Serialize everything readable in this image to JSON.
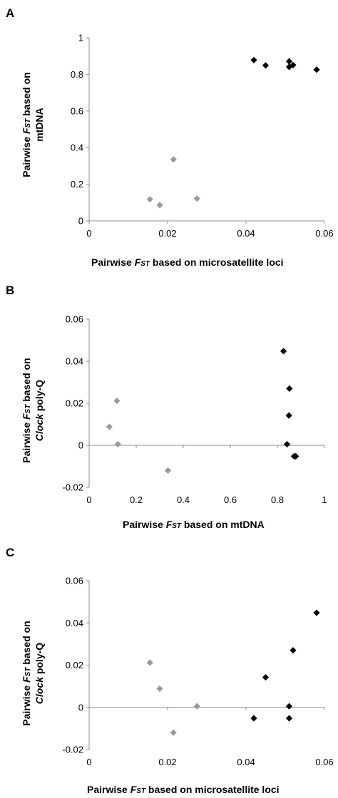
{
  "chart_data": [
    {
      "panel": "A",
      "type": "scatter",
      "xlabel": "Pairwise FST based on microsatellite loci",
      "ylabel": "Pairwise FST based on mtDNA",
      "xlim": [
        0,
        0.06
      ],
      "ylim": [
        0,
        1
      ],
      "xticks": [
        "0",
        "0.02",
        "0.04",
        "0.06"
      ],
      "yticks": [
        "0",
        "0.2",
        "0.4",
        "0.6",
        "0.8",
        "1"
      ],
      "series": [
        {
          "color": "#9b9b9b",
          "points": [
            [
              0.0155,
              0.118
            ],
            [
              0.018,
              0.086
            ],
            [
              0.0215,
              0.335
            ],
            [
              0.0275,
              0.122
            ]
          ]
        },
        {
          "color": "#000000",
          "points": [
            [
              0.042,
              0.878
            ],
            [
              0.045,
              0.849
            ],
            [
              0.051,
              0.871
            ],
            [
              0.051,
              0.841
            ],
            [
              0.052,
              0.851
            ],
            [
              0.058,
              0.826
            ]
          ]
        }
      ]
    },
    {
      "panel": "B",
      "type": "scatter",
      "xlabel": "Pairwise FST based on mtDNA",
      "ylabel": "Pairwise FST based on Clock poly-Q",
      "xlim": [
        0,
        1
      ],
      "ylim": [
        -0.02,
        0.06
      ],
      "xticks": [
        "0",
        "0.2",
        "0.4",
        "0.6",
        "0.8",
        "1"
      ],
      "yticks": [
        "-0.02",
        "0",
        "0.02",
        "0.04",
        "0.06"
      ],
      "series": [
        {
          "color": "#9b9b9b",
          "points": [
            [
              0.086,
              0.0088
            ],
            [
              0.118,
              0.0212
            ],
            [
              0.122,
              0.0005
            ],
            [
              0.335,
              -0.012
            ]
          ]
        },
        {
          "color": "#000000",
          "points": [
            [
              0.826,
              0.0448
            ],
            [
              0.851,
              0.027
            ],
            [
              0.849,
              0.0142
            ],
            [
              0.841,
              0.0005
            ],
            [
              0.871,
              -0.0052
            ],
            [
              0.878,
              -0.0052
            ]
          ]
        }
      ]
    },
    {
      "panel": "C",
      "type": "scatter",
      "xlabel": "Pairwise FST based on microsatellite loci",
      "ylabel": "Pairwise FST based on Clock poly-Q",
      "xlim": [
        0,
        0.06
      ],
      "ylim": [
        -0.02,
        0.06
      ],
      "xticks": [
        "0",
        "0.02",
        "0.04",
        "0.06"
      ],
      "yticks": [
        "-0.02",
        "0",
        "0.02",
        "0.04",
        "0.06"
      ],
      "series": [
        {
          "color": "#9b9b9b",
          "points": [
            [
              0.0155,
              0.0212
            ],
            [
              0.018,
              0.0088
            ],
            [
              0.0215,
              -0.012
            ],
            [
              0.0275,
              0.0005
            ]
          ]
        },
        {
          "color": "#000000",
          "points": [
            [
              0.042,
              -0.0052
            ],
            [
              0.045,
              0.0142
            ],
            [
              0.051,
              -0.0052
            ],
            [
              0.051,
              0.0005
            ],
            [
              0.052,
              0.027
            ],
            [
              0.058,
              0.0448
            ]
          ]
        }
      ]
    }
  ]
}
